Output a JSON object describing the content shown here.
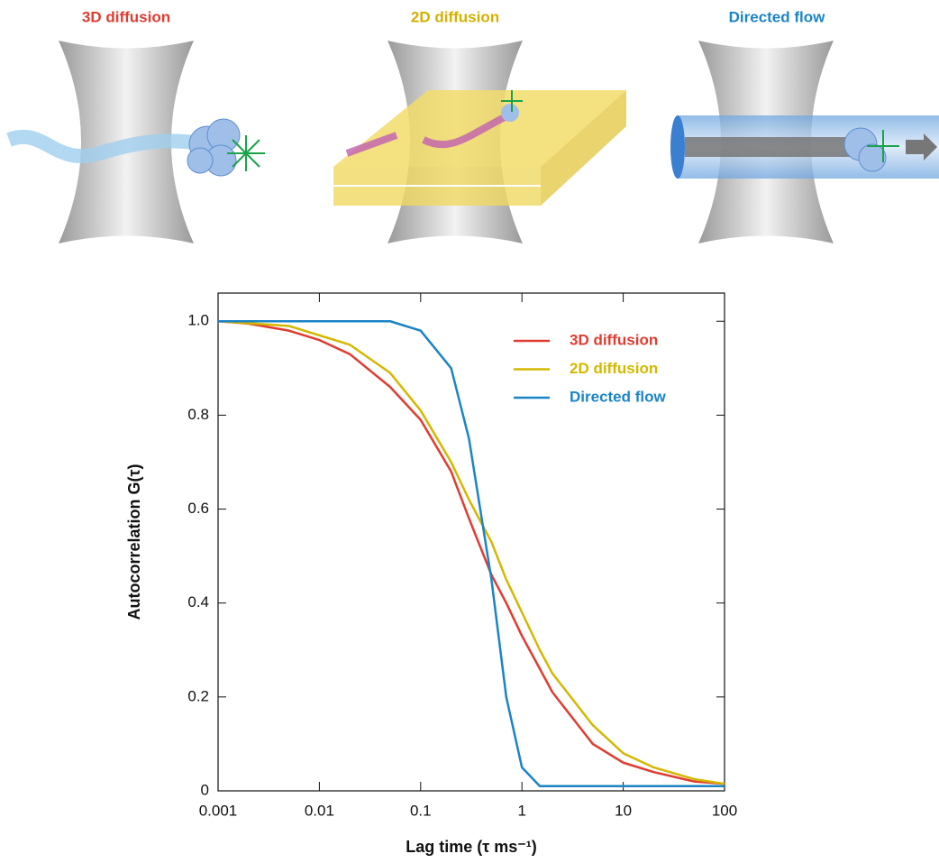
{
  "illustrations": [
    "3D diffusion",
    "2D diffusion",
    "Directed flow"
  ],
  "chart_data": {
    "type": "line",
    "xlabel": "Lag time (τ ms⁻¹)",
    "ylabel": "Autocorrelation G(τ)",
    "x": [
      0.001,
      0.002,
      0.005,
      0.01,
      0.02,
      0.05,
      0.1,
      0.2,
      0.3,
      0.5,
      0.7,
      1,
      1.5,
      2,
      5,
      10,
      20,
      50,
      100
    ],
    "series": [
      {
        "name": "3D diffusion",
        "color": "#e03c31",
        "values": [
          1.0,
          0.995,
          0.98,
          0.96,
          0.93,
          0.86,
          0.79,
          0.68,
          0.58,
          0.46,
          0.4,
          0.33,
          0.26,
          0.21,
          0.1,
          0.06,
          0.04,
          0.02,
          0.015
        ]
      },
      {
        "name": "2D diffusion",
        "color": "#d4b800",
        "values": [
          1.0,
          0.996,
          0.99,
          0.97,
          0.95,
          0.89,
          0.81,
          0.7,
          0.62,
          0.53,
          0.45,
          0.38,
          0.3,
          0.25,
          0.14,
          0.08,
          0.05,
          0.025,
          0.015
        ]
      },
      {
        "name": "Directed flow",
        "color": "#1a84c7",
        "values": [
          1.0,
          1.0,
          1.0,
          1.0,
          1.0,
          1.0,
          0.98,
          0.9,
          0.75,
          0.45,
          0.2,
          0.05,
          0.01,
          0.01,
          0.01,
          0.01,
          0.01,
          0.01,
          0.01
        ]
      }
    ],
    "xscale": "log",
    "xlim": [
      0.001,
      100
    ],
    "xticks": [
      0.001,
      0.01,
      0.1,
      1,
      10,
      100
    ],
    "ylim": [
      0,
      1.06
    ],
    "yticks": [
      0,
      0.2,
      0.4,
      0.6,
      0.8,
      {
        "value": 1,
        "label": "1.0"
      }
    ],
    "legend": "upper right"
  }
}
